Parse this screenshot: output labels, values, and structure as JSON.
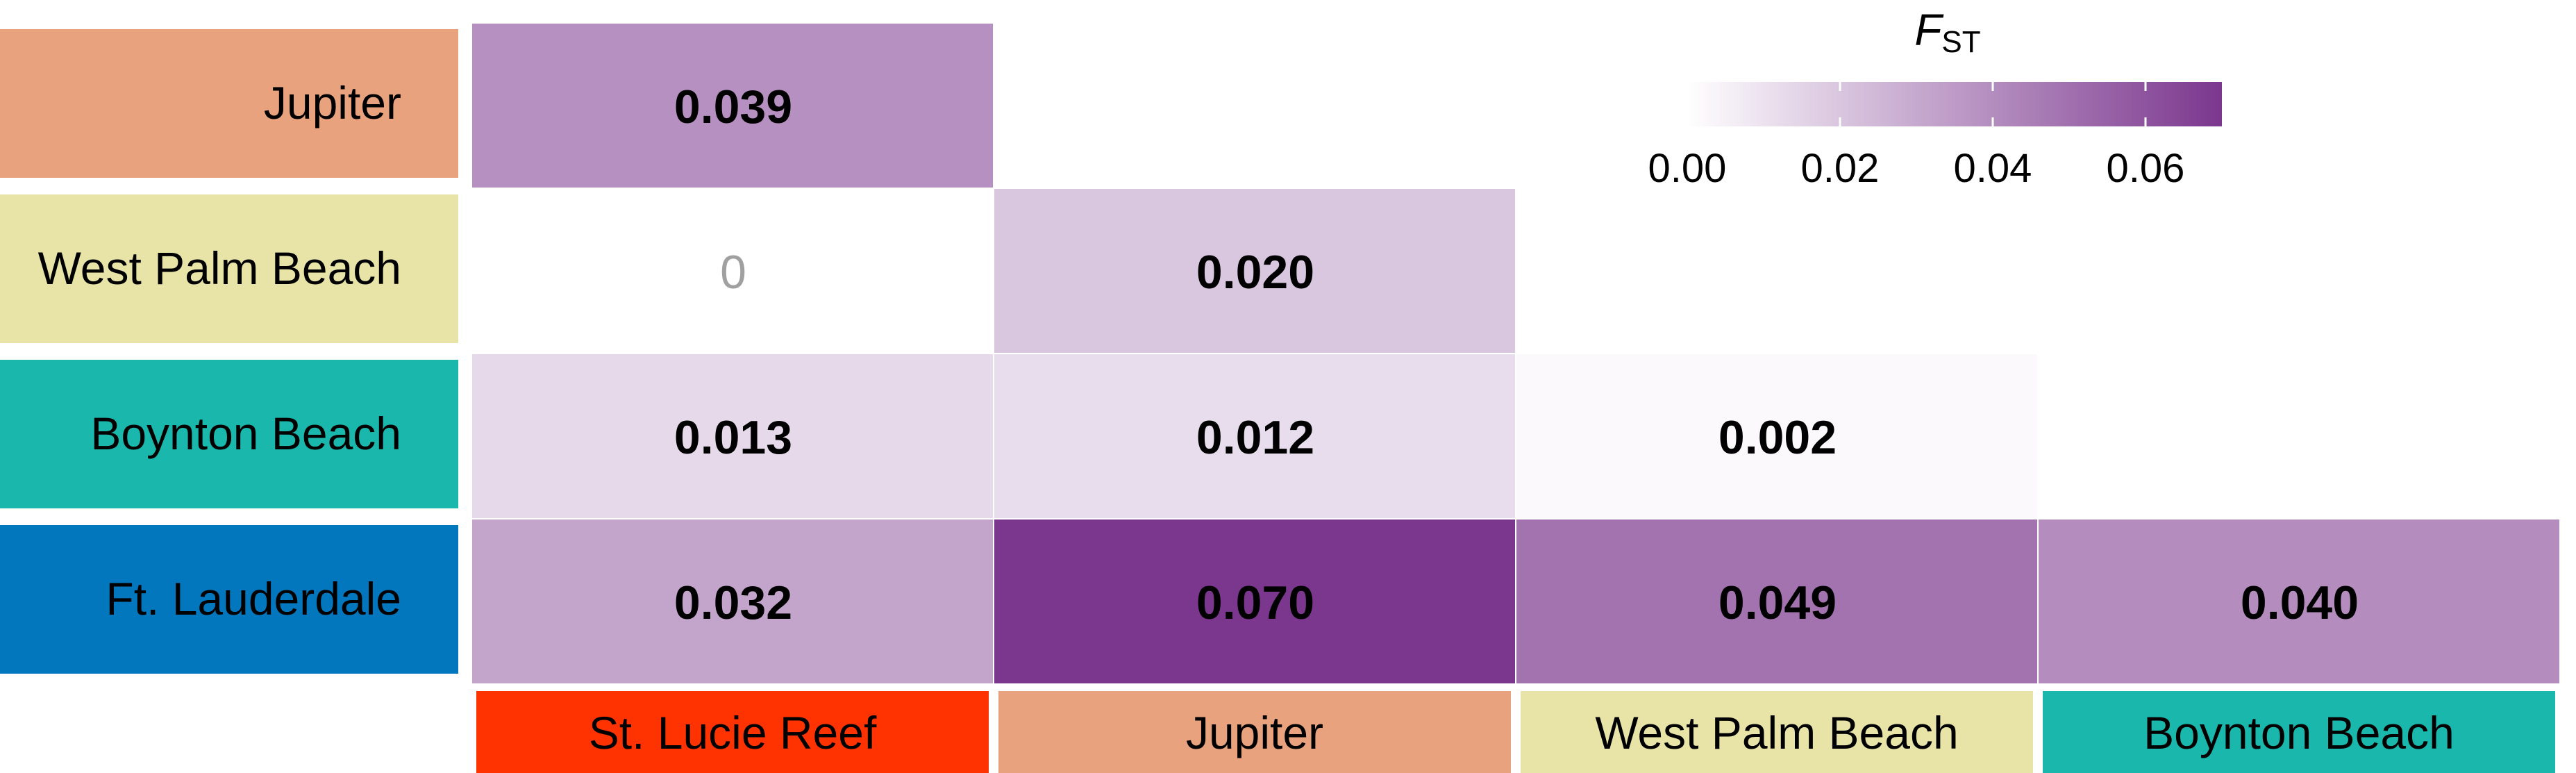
{
  "chart_data": {
    "type": "heatmap",
    "title": "",
    "legend_title": "F",
    "legend_title_subscript": "ST",
    "legend_ticks": [
      "0.00",
      "0.02",
      "0.04",
      "0.06"
    ],
    "legend_range": [
      0,
      0.07
    ],
    "legend_placement": "top-right",
    "color_low": "#ffffff",
    "color_high": "#7b378e",
    "rows": [
      {
        "label": "Jupiter",
        "color": "#e9a27e"
      },
      {
        "label": "West Palm Beach",
        "color": "#e8e3a6"
      },
      {
        "label": "Boynton Beach",
        "color": "#1ab7ac"
      },
      {
        "label": "Ft. Lauderdale",
        "color": "#0277bd"
      }
    ],
    "columns": [
      {
        "label": "St. Lucie Reef",
        "color": "#ff3301"
      },
      {
        "label": "Jupiter",
        "color": "#e9a27e"
      },
      {
        "label": "West Palm Beach",
        "color": "#e8e3a6"
      },
      {
        "label": "Boynton Beach",
        "color": "#1ab7ac"
      }
    ],
    "cells": [
      {
        "row": 0,
        "col": 0,
        "value": 0.039,
        "label": "0.039",
        "bold": true
      },
      {
        "row": 1,
        "col": 0,
        "value": 0,
        "label": "0",
        "bold": false
      },
      {
        "row": 1,
        "col": 1,
        "value": 0.02,
        "label": "0.020",
        "bold": true
      },
      {
        "row": 2,
        "col": 0,
        "value": 0.013,
        "label": "0.013",
        "bold": true
      },
      {
        "row": 2,
        "col": 1,
        "value": 0.012,
        "label": "0.012",
        "bold": true
      },
      {
        "row": 2,
        "col": 2,
        "value": 0.002,
        "label": "0.002",
        "bold": true
      },
      {
        "row": 3,
        "col": 0,
        "value": 0.032,
        "label": "0.032",
        "bold": true
      },
      {
        "row": 3,
        "col": 1,
        "value": 0.07,
        "label": "0.070",
        "bold": true
      },
      {
        "row": 3,
        "col": 2,
        "value": 0.049,
        "label": "0.049",
        "bold": true
      },
      {
        "row": 3,
        "col": 3,
        "value": 0.04,
        "label": "0.040",
        "bold": true
      }
    ]
  }
}
